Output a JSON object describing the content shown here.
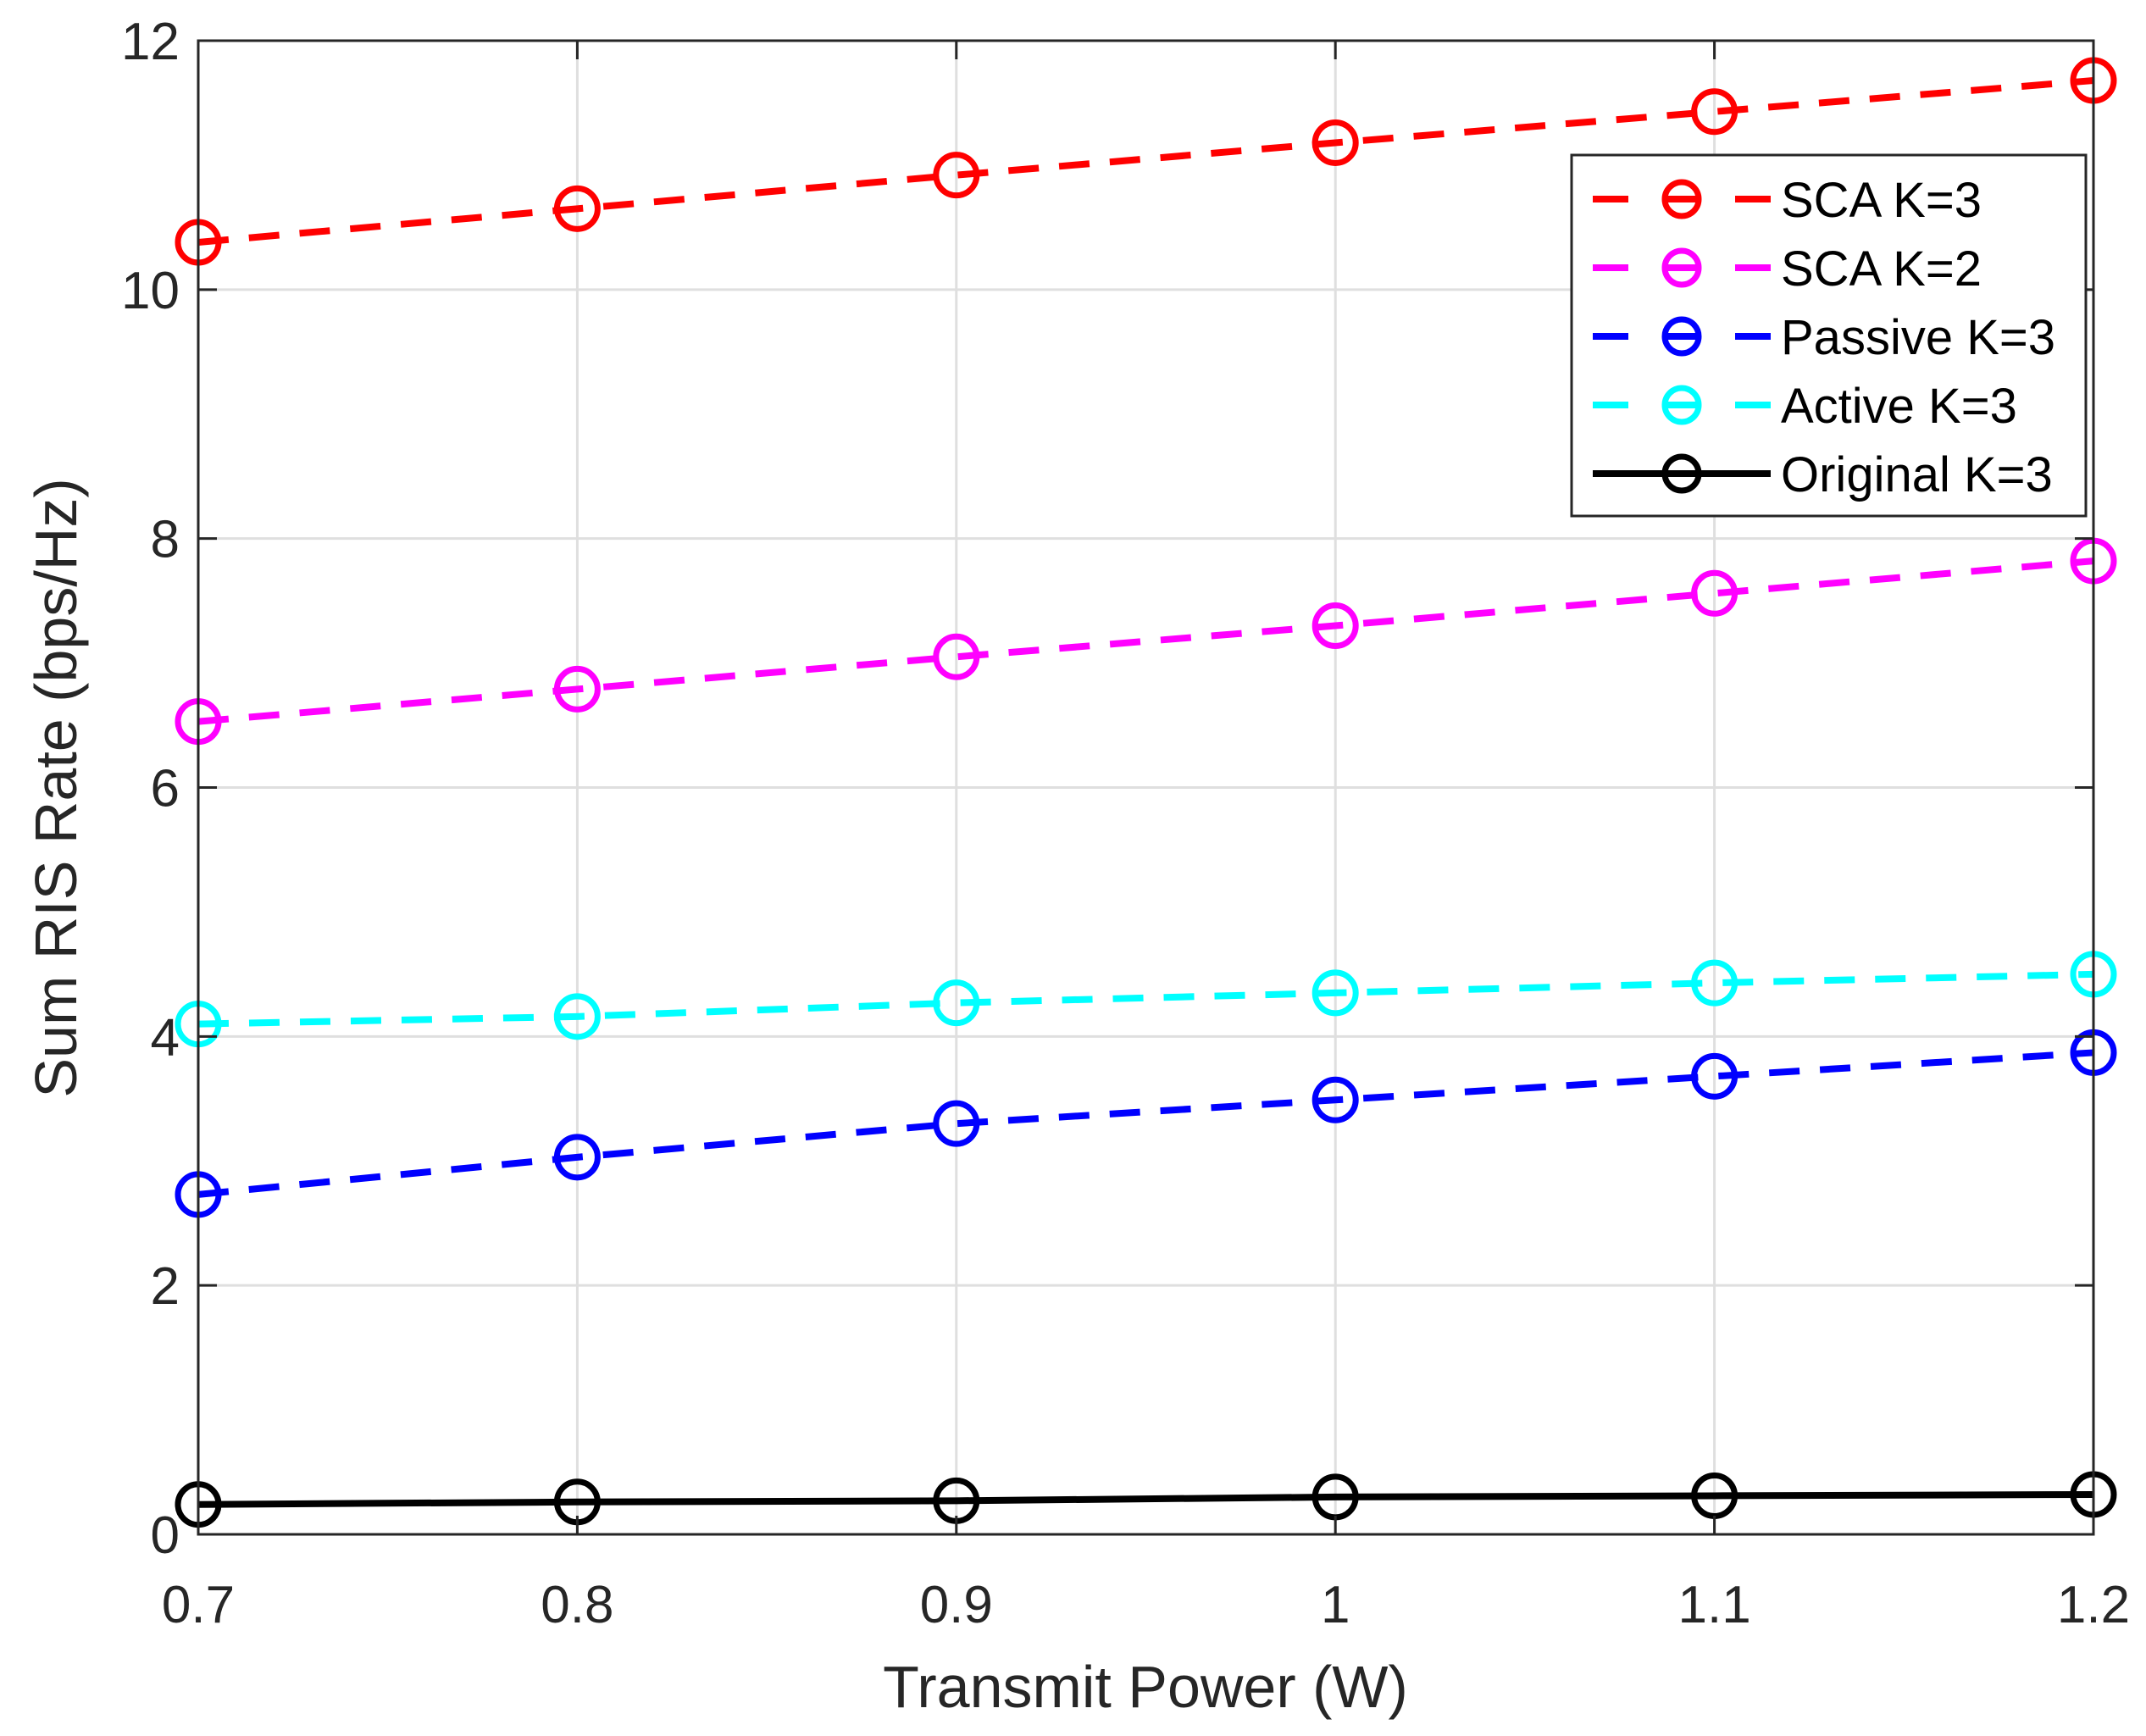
{
  "chart_data": {
    "type": "line",
    "title": "",
    "xlabel": "Transmit Power (W)",
    "ylabel": "Sum RIS Rate (bps/Hz)",
    "x": [
      0.7,
      0.8,
      0.9,
      1.0,
      1.1,
      1.2
    ],
    "xlim": [
      0.7,
      1.2
    ],
    "ylim": [
      0,
      12
    ],
    "xticks": [
      0.7,
      0.8,
      0.9,
      1.0,
      1.1,
      1.2
    ],
    "xtick_labels": [
      "0.7",
      "0.8",
      "0.9",
      "1",
      "1.1",
      "1.2"
    ],
    "yticks": [
      0,
      2,
      4,
      6,
      8,
      10,
      12
    ],
    "ytick_labels": [
      "0",
      "2",
      "4",
      "6",
      "8",
      "10",
      "12"
    ],
    "grid": true,
    "legend_position": "top-right",
    "series": [
      {
        "name": "SCA K=3",
        "color": "#ff0000",
        "dash": "dashed",
        "marker": "circle",
        "values": [
          10.38,
          10.65,
          10.92,
          11.18,
          11.43,
          11.68
        ]
      },
      {
        "name": "SCA K=2",
        "color": "#ff00ff",
        "dash": "dashed",
        "marker": "circle",
        "values": [
          6.53,
          6.79,
          7.05,
          7.3,
          7.56,
          7.82
        ]
      },
      {
        "name": "Passive K=3",
        "color": "#0000ff",
        "dash": "dashed",
        "marker": "circle",
        "values": [
          2.73,
          3.03,
          3.3,
          3.49,
          3.68,
          3.87
        ]
      },
      {
        "name": "Active K=3",
        "color": "#00ffff",
        "dash": "dashed",
        "marker": "circle",
        "values": [
          4.1,
          4.16,
          4.27,
          4.35,
          4.43,
          4.5
        ]
      },
      {
        "name": "Original K=3",
        "color": "#000000",
        "dash": "solid",
        "marker": "circle",
        "values": [
          0.24,
          0.26,
          0.27,
          0.3,
          0.31,
          0.32
        ]
      }
    ]
  }
}
